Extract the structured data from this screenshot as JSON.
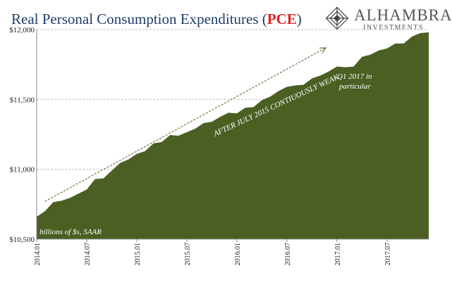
{
  "title": {
    "main": "Real Personal Consumption Expenditures (",
    "highlight": "PCE",
    "close": ")"
  },
  "logo": {
    "name": "ALHAMBRA",
    "sub": "INVESTMENTS"
  },
  "colors": {
    "fill": "#4b5f23",
    "title": "#1f3d6b",
    "highlight": "#e0201f",
    "grid": "#bdbdbd",
    "trend": "#6a7a3a"
  },
  "chart_data": {
    "type": "area",
    "ylim": [
      10500,
      12000
    ],
    "ytick_labels": [
      "$10,500",
      "$11,000",
      "$11,500",
      "$12,000"
    ],
    "ytick_values": [
      10500,
      11000,
      11500,
      12000
    ],
    "xtick_labels": [
      "2014.01",
      "2014.07",
      "2015.01",
      "2015.07",
      "2016.01",
      "2016.07",
      "2017.01",
      "2017.07"
    ],
    "xtick_index": [
      0,
      6,
      12,
      18,
      24,
      30,
      36,
      42
    ],
    "x": [
      "2014.01",
      "2014.02",
      "2014.03",
      "2014.04",
      "2014.05",
      "2014.06",
      "2014.07",
      "2014.08",
      "2014.09",
      "2014.10",
      "2014.11",
      "2014.12",
      "2015.01",
      "2015.02",
      "2015.03",
      "2015.04",
      "2015.05",
      "2015.06",
      "2015.07",
      "2015.08",
      "2015.09",
      "2015.10",
      "2015.11",
      "2015.12",
      "2016.01",
      "2016.02",
      "2016.03",
      "2016.04",
      "2016.05",
      "2016.06",
      "2016.07",
      "2016.08",
      "2016.09",
      "2016.10",
      "2016.11",
      "2016.12",
      "2017.01",
      "2017.02",
      "2017.03",
      "2017.04",
      "2017.05",
      "2017.06",
      "2017.07",
      "2017.08",
      "2017.09",
      "2017.10",
      "2017.11",
      "2017.12"
    ],
    "values": [
      10660,
      10700,
      10765,
      10775,
      10795,
      10825,
      10855,
      10930,
      10935,
      10990,
      11045,
      11070,
      11110,
      11130,
      11185,
      11195,
      11245,
      11240,
      11265,
      11290,
      11330,
      11340,
      11375,
      11405,
      11400,
      11440,
      11445,
      11495,
      11520,
      11560,
      11590,
      11600,
      11605,
      11650,
      11670,
      11700,
      11735,
      11730,
      11735,
      11805,
      11820,
      11850,
      11865,
      11900,
      11900,
      11950,
      11975,
      11980
    ],
    "annotations": {
      "units": "billions of $s, SAAR",
      "trend_label": "AFTER JULY 2015 CONTIUOUSLY WEAK",
      "note": "Q1 2017 in particular"
    },
    "grid": true
  }
}
